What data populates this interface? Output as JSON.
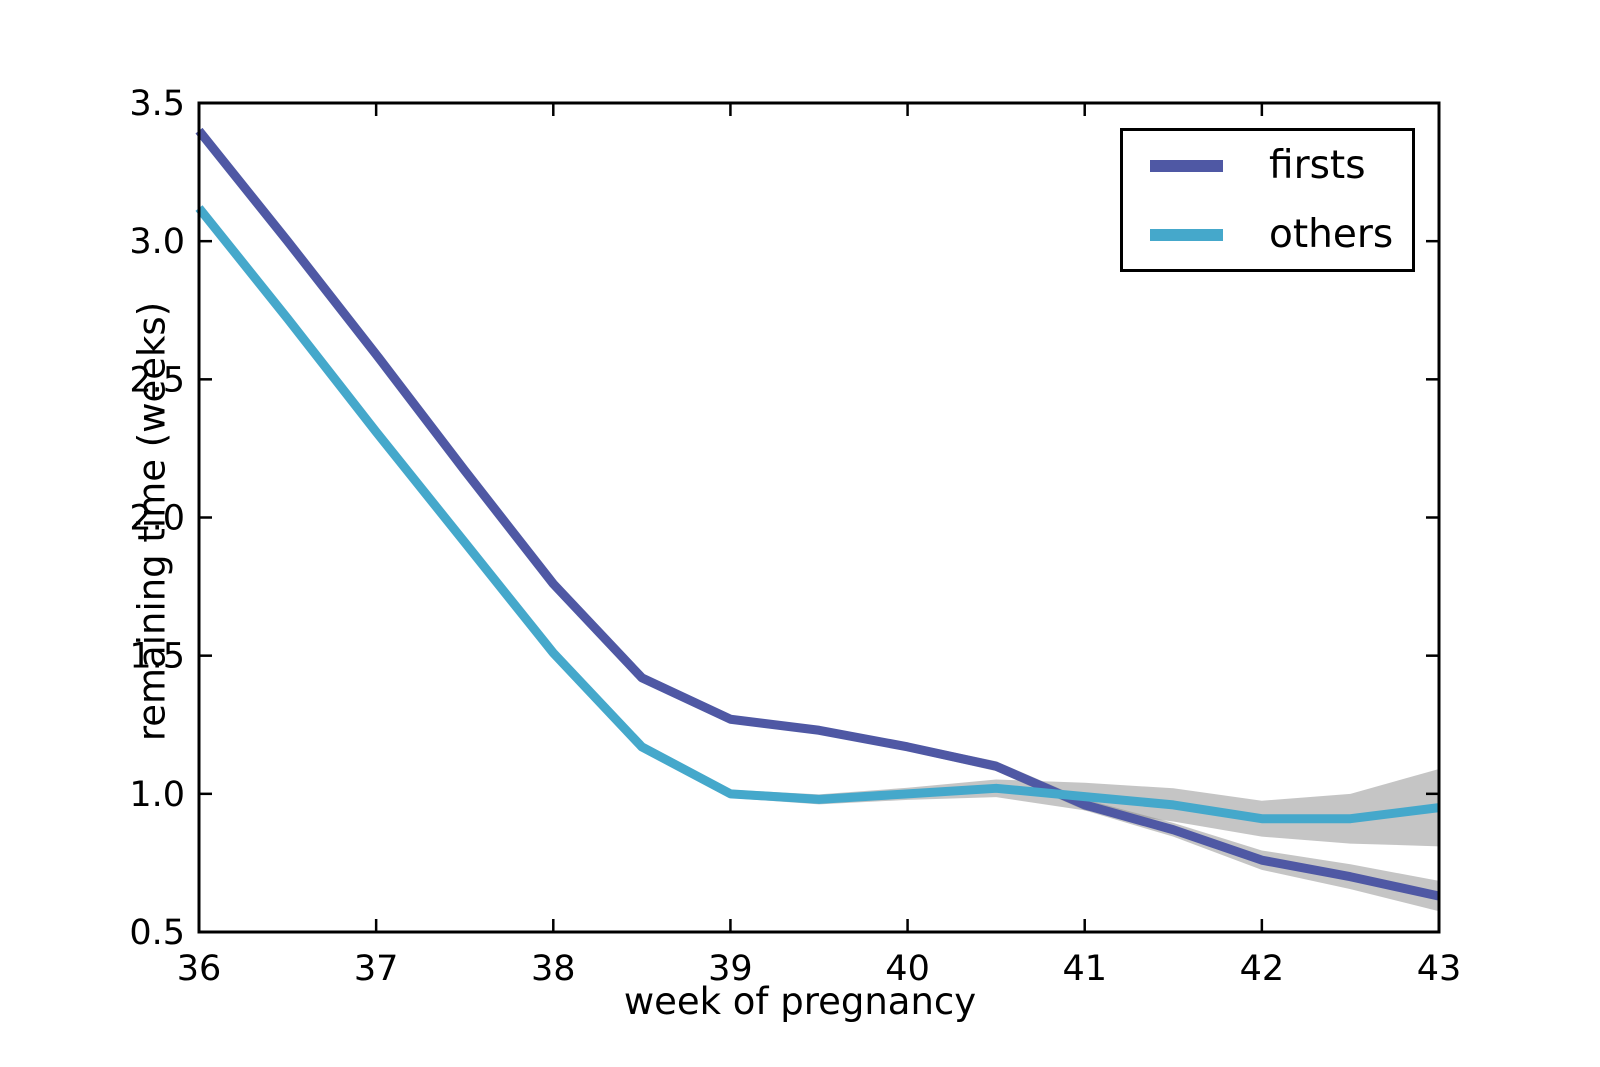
{
  "figure": {
    "background": "#ffffff",
    "xlabel": "week of pregnancy",
    "ylabel": "remaining time (weeks)"
  },
  "legend": {
    "position": "upper right",
    "items": [
      {
        "label": "firsts",
        "color": "#4f58a4"
      },
      {
        "label": "others",
        "color": "#45a8cb"
      }
    ]
  },
  "chart_data": {
    "type": "line",
    "title": "",
    "xlabel": "week of pregnancy",
    "ylabel": "remaining time (weeks)",
    "xlim": [
      36,
      43
    ],
    "ylim": [
      0.5,
      3.5
    ],
    "x_ticks": [
      36,
      37,
      38,
      39,
      40,
      41,
      42,
      43
    ],
    "y_ticks": [
      0.5,
      1.0,
      1.5,
      2.0,
      2.5,
      3.0,
      3.5
    ],
    "grid": false,
    "legend_position": "upper right",
    "x": [
      36,
      36.5,
      37,
      37.5,
      38,
      38.5,
      39,
      39.5,
      40,
      40.5,
      41,
      41.5,
      42,
      42.5,
      43
    ],
    "series": [
      {
        "name": "firsts",
        "color": "#4f58a4",
        "values": [
          3.4,
          3.0,
          2.59,
          2.17,
          1.76,
          1.42,
          1.27,
          1.23,
          1.17,
          1.1,
          0.96,
          0.87,
          0.76,
          0.7,
          0.63
        ],
        "ci_halfwidth": [
          0.01,
          0.01,
          0.01,
          0.01,
          0.01,
          0.01,
          0.01,
          0.012,
          0.015,
          0.018,
          0.02,
          0.025,
          0.035,
          0.045,
          0.055
        ]
      },
      {
        "name": "others",
        "color": "#45a8cb",
        "values": [
          3.12,
          2.72,
          2.31,
          1.91,
          1.51,
          1.17,
          1.0,
          0.98,
          1.0,
          1.02,
          0.99,
          0.96,
          0.91,
          0.91,
          0.95
        ],
        "ci_halfwidth": [
          0.01,
          0.01,
          0.01,
          0.01,
          0.01,
          0.012,
          0.015,
          0.018,
          0.022,
          0.032,
          0.05,
          0.06,
          0.065,
          0.09,
          0.14
        ]
      }
    ],
    "band_color": "#8c8c8c",
    "band_opacity": 0.5
  },
  "style": {
    "spine_color": "#000000",
    "spine_width": 3,
    "tick_length": 13,
    "tick_width": 2.5,
    "line_width": 9,
    "tick_font_size": 35
  }
}
